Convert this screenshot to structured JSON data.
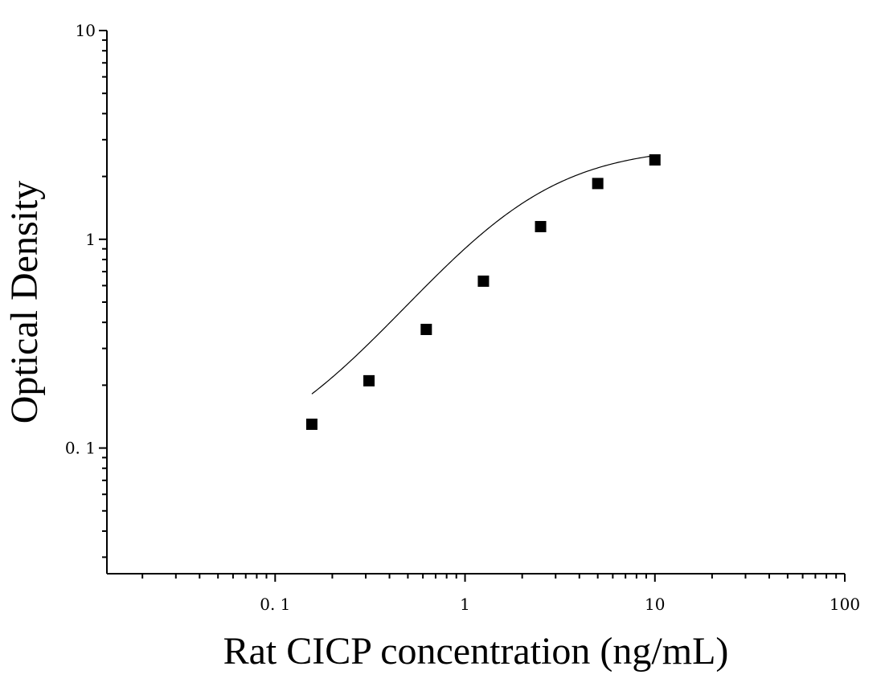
{
  "chart_data": {
    "type": "scatter",
    "xlabel": "Rat CICP concentration (ng/mL)",
    "ylabel": "Optical Density",
    "xscale": "log",
    "yscale": "log",
    "xlim": [
      0.013,
      100
    ],
    "ylim": [
      0.025,
      10
    ],
    "x_ticks": [
      {
        "value": 0.1,
        "label": "0. 1"
      },
      {
        "value": 1,
        "label": "1"
      },
      {
        "value": 10,
        "label": "10"
      },
      {
        "value": 100,
        "label": "100"
      }
    ],
    "y_ticks": [
      {
        "value": 0.1,
        "label": "0. 1"
      },
      {
        "value": 1,
        "label": "1"
      },
      {
        "value": 10,
        "label": "10"
      }
    ],
    "grid": false,
    "legend": "none",
    "marker_color": "#000000",
    "curve_color": "#000000",
    "series": [
      {
        "x": [
          0.156,
          0.312,
          0.625,
          1.25,
          2.5,
          5,
          10
        ],
        "y": [
          0.13,
          0.21,
          0.37,
          0.63,
          1.15,
          1.85,
          2.4
        ]
      }
    ],
    "fit_curve": {
      "model": "4PL",
      "bottom": 0.08,
      "top": 2.8,
      "ec50": 1.9,
      "hill": 1.3,
      "x_range": [
        0.156,
        10
      ]
    }
  }
}
